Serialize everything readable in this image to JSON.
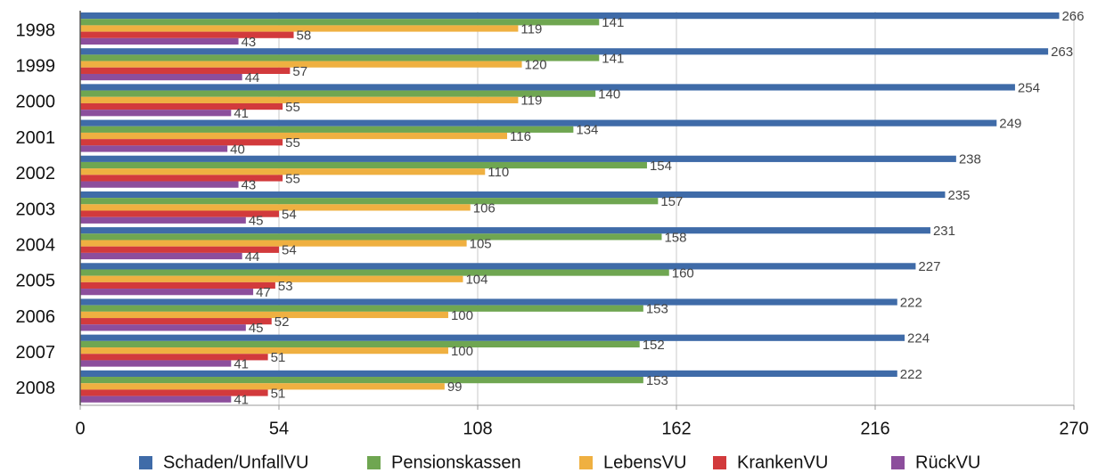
{
  "chart_data": {
    "type": "bar",
    "orientation": "horizontal",
    "categories": [
      "1998",
      "1999",
      "2000",
      "2001",
      "2002",
      "2003",
      "2004",
      "2005",
      "2006",
      "2007",
      "2008"
    ],
    "series": [
      {
        "name": "Schaden/UnfallVU",
        "color": "#3f6ba8",
        "values": [
          266,
          263,
          254,
          249,
          238,
          235,
          231,
          227,
          222,
          224,
          222
        ]
      },
      {
        "name": "Pensionskassen",
        "color": "#6fa651",
        "values": [
          141,
          141,
          140,
          134,
          154,
          157,
          158,
          160,
          153,
          152,
          153
        ]
      },
      {
        "name": "LebensVU",
        "color": "#efb041",
        "values": [
          119,
          120,
          119,
          116,
          110,
          106,
          105,
          104,
          100,
          100,
          99
        ]
      },
      {
        "name": "KrankenVU",
        "color": "#d23a3c",
        "values": [
          58,
          57,
          55,
          55,
          55,
          54,
          54,
          53,
          52,
          51,
          51
        ]
      },
      {
        "name": "RückVU",
        "color": "#8c4e9c",
        "values": [
          43,
          44,
          41,
          40,
          43,
          45,
          44,
          47,
          45,
          41,
          41
        ]
      }
    ],
    "xlim": [
      0,
      270
    ],
    "xticks": [
      0,
      54,
      108,
      162,
      216,
      270
    ],
    "grid": true,
    "legend": "bottom"
  }
}
